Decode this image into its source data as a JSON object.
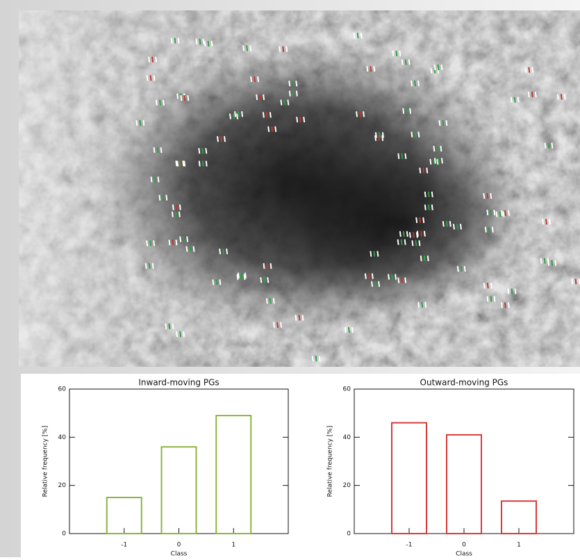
{
  "chart_data": [
    {
      "type": "bar",
      "title": "Inward-moving PGs",
      "x_label": "Class",
      "y_label": "Relative frequency [%]",
      "categories": [
        "-1",
        "0",
        "1"
      ],
      "values": [
        15,
        36,
        49
      ],
      "color": "#8db43c",
      "ylim": [
        0,
        60
      ],
      "yticks": [
        0,
        20,
        40,
        60
      ]
    },
    {
      "type": "bar",
      "title": "Outward-moving PGs",
      "x_label": "Class",
      "y_label": "Relative frequency [%]",
      "categories": [
        "-1",
        "0",
        "1"
      ],
      "values": [
        46,
        41,
        13.5
      ],
      "color": "#d63a3a",
      "ylim": [
        0,
        60
      ],
      "yticks": [
        0,
        20,
        40,
        60
      ]
    }
  ]
}
